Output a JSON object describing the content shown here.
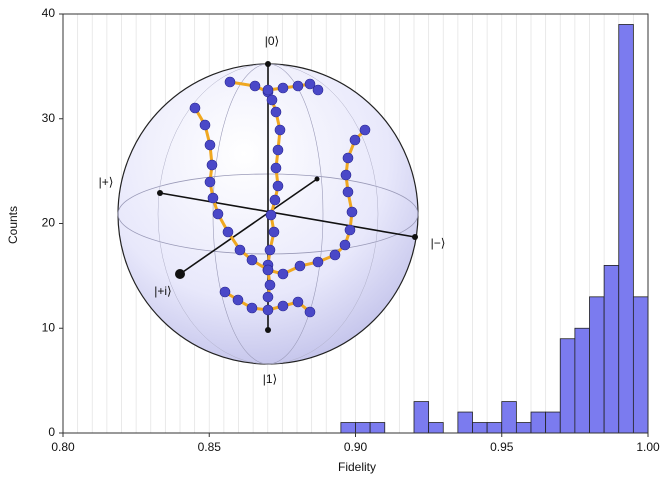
{
  "chart_data": {
    "type": "histogram",
    "xlabel": "Fidelity",
    "ylabel": "Counts",
    "bins": [
      0.8,
      0.805,
      0.81,
      0.815,
      0.82,
      0.825,
      0.83,
      0.835,
      0.84,
      0.845,
      0.85,
      0.855,
      0.86,
      0.865,
      0.87,
      0.875,
      0.88,
      0.885,
      0.89,
      0.895,
      0.9,
      0.905,
      0.91,
      0.915,
      0.92,
      0.925,
      0.93,
      0.935,
      0.94,
      0.945,
      0.95,
      0.955,
      0.96,
      0.965,
      0.97,
      0.975,
      0.98,
      0.985,
      0.99,
      0.995,
      1.0
    ],
    "values": [
      0,
      0,
      0,
      0,
      0,
      0,
      0,
      0,
      0,
      0,
      0,
      0,
      0,
      0,
      0,
      0,
      0,
      0,
      0,
      1,
      1,
      1,
      0,
      0,
      3,
      1,
      0,
      2,
      1,
      1,
      3,
      1,
      2,
      2,
      9,
      10,
      13,
      16,
      39,
      13
    ],
    "color": "#7b7bef",
    "xlim": [
      0.8,
      1.0
    ],
    "ylim": [
      0,
      40
    ],
    "xticks": [
      {
        "value": 0.8,
        "label": "0.80"
      },
      0.85,
      {
        "value": 0.9,
        "label": "0.90"
      },
      0.95,
      {
        "value": 1.0,
        "label": "1.00"
      }
    ],
    "yticks": [
      0,
      10,
      20,
      30,
      40
    ],
    "grid": true,
    "inset_labels": [
      "|0⟩",
      "|1⟩",
      "|+⟩",
      "|−⟩",
      "|+i⟩"
    ]
  }
}
